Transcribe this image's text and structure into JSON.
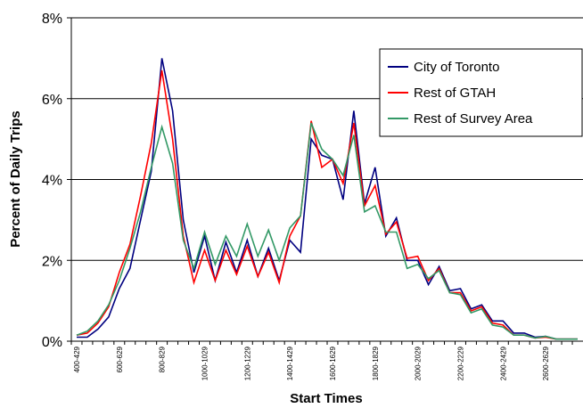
{
  "chart_data": {
    "type": "line",
    "x_label": "Start Times",
    "y_label": "Percent of Daily Trips",
    "categories": [
      "400-429",
      null,
      null,
      null,
      "600-629",
      null,
      null,
      null,
      "800-829",
      null,
      null,
      null,
      "1000-1029",
      null,
      null,
      null,
      "1200-1229",
      null,
      null,
      null,
      "1400-1429",
      null,
      null,
      null,
      "1600-1629",
      null,
      null,
      null,
      "1800-1829",
      null,
      null,
      null,
      "2000-2029",
      null,
      null,
      null,
      "2200-2229",
      null,
      null,
      null,
      "2400-2429",
      null,
      null,
      null,
      "2600-2629",
      null,
      null,
      null
    ],
    "series": [
      {
        "name": "City of Toronto",
        "color": "#000080",
        "values": [
          0.1,
          0.1,
          0.3,
          0.6,
          1.3,
          1.8,
          3.0,
          4.2,
          7.0,
          5.7,
          3.0,
          1.7,
          2.6,
          1.5,
          2.45,
          1.7,
          2.5,
          1.6,
          2.3,
          1.5,
          2.5,
          2.2,
          5.0,
          4.6,
          4.5,
          3.5,
          5.7,
          3.4,
          4.3,
          2.6,
          3.05,
          2.0,
          2.0,
          1.4,
          1.85,
          1.25,
          1.3,
          0.8,
          0.9,
          0.5,
          0.5,
          0.2,
          0.2,
          0.1,
          0.12,
          0.05,
          0.05,
          0.05
        ]
      },
      {
        "name": "Rest of GTAH",
        "color": "#ff0000",
        "values": [
          0.15,
          0.2,
          0.45,
          0.85,
          1.7,
          2.4,
          3.6,
          4.9,
          6.7,
          5.0,
          2.6,
          1.45,
          2.25,
          1.5,
          2.25,
          1.65,
          2.35,
          1.6,
          2.2,
          1.45,
          2.6,
          3.1,
          5.45,
          4.3,
          4.5,
          3.9,
          5.4,
          3.35,
          3.85,
          2.65,
          2.95,
          2.05,
          2.1,
          1.5,
          1.8,
          1.2,
          1.2,
          0.75,
          0.85,
          0.45,
          0.4,
          0.15,
          0.15,
          0.08,
          0.1,
          0.05,
          0.05,
          0.05
        ]
      },
      {
        "name": "Rest of Survey Area",
        "color": "#339966",
        "values": [
          0.15,
          0.25,
          0.5,
          0.9,
          1.5,
          2.3,
          3.2,
          4.3,
          5.3,
          4.4,
          2.5,
          1.8,
          2.7,
          1.9,
          2.6,
          2.1,
          2.9,
          2.1,
          2.75,
          2.0,
          2.8,
          3.1,
          5.4,
          4.75,
          4.5,
          4.1,
          5.1,
          3.2,
          3.35,
          2.7,
          2.7,
          1.8,
          1.9,
          1.55,
          1.75,
          1.2,
          1.15,
          0.7,
          0.8,
          0.4,
          0.35,
          0.15,
          0.15,
          0.08,
          0.12,
          0.05,
          0.05,
          0.05
        ]
      }
    ],
    "ylim": [
      0,
      8
    ],
    "yticks": [
      {
        "value": 0,
        "label": "0%"
      },
      {
        "value": 2,
        "label": "2%"
      },
      {
        "value": 4,
        "label": "4%"
      },
      {
        "value": 6,
        "label": "6%"
      },
      {
        "value": 8,
        "label": "8%"
      }
    ],
    "grid": true,
    "legend": "upper right"
  }
}
